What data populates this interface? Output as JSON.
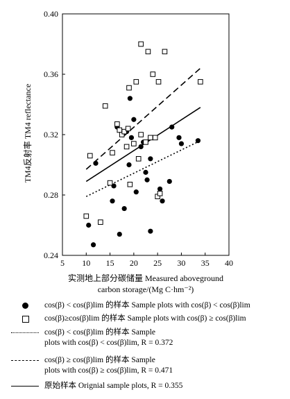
{
  "chart_data": {
    "type": "scatter",
    "xlabel_line1": "实测地上部分碳储量 Measured aboveground",
    "xlabel_line2": "carbon storage/(Mg C·hm⁻²)",
    "ylabel": "TM4反射率 TM4 reflectance",
    "xlim": [
      5,
      40
    ],
    "ylim": [
      0.24,
      0.4
    ],
    "x_ticks": [
      "5",
      "10",
      "15",
      "20",
      "25",
      "30",
      "35",
      "40"
    ],
    "y_ticks": [
      "0.24",
      "0.28",
      "0.32",
      "0.36",
      "0.40"
    ],
    "grid": false,
    "series": [
      {
        "marker": "filled-circle",
        "points": [
          [
            10.5,
            0.26
          ],
          [
            11.5,
            0.247
          ],
          [
            12.0,
            0.301
          ],
          [
            15.5,
            0.276
          ],
          [
            15.8,
            0.286
          ],
          [
            16.5,
            0.325
          ],
          [
            17.0,
            0.254
          ],
          [
            18.0,
            0.271
          ],
          [
            18.0,
            0.321
          ],
          [
            18.5,
            0.322
          ],
          [
            19.0,
            0.3
          ],
          [
            19.2,
            0.344
          ],
          [
            19.5,
            0.318
          ],
          [
            20.0,
            0.33
          ],
          [
            20.5,
            0.282
          ],
          [
            21.5,
            0.312
          ],
          [
            22.0,
            0.315
          ],
          [
            22.5,
            0.295
          ],
          [
            22.8,
            0.29
          ],
          [
            23.5,
            0.256
          ],
          [
            23.5,
            0.304
          ],
          [
            25.5,
            0.284
          ],
          [
            26.0,
            0.276
          ],
          [
            27.5,
            0.289
          ],
          [
            28.0,
            0.325
          ],
          [
            29.5,
            0.318
          ],
          [
            30.0,
            0.314
          ],
          [
            33.5,
            0.316
          ]
        ]
      },
      {
        "marker": "open-square",
        "points": [
          [
            10.0,
            0.266
          ],
          [
            10.8,
            0.306
          ],
          [
            13.0,
            0.262
          ],
          [
            14.0,
            0.339
          ],
          [
            15.0,
            0.288
          ],
          [
            15.5,
            0.308
          ],
          [
            16.5,
            0.327
          ],
          [
            17.0,
            0.323
          ],
          [
            17.5,
            0.32
          ],
          [
            18.0,
            0.322
          ],
          [
            18.5,
            0.312
          ],
          [
            18.8,
            0.324
          ],
          [
            19.0,
            0.351
          ],
          [
            19.2,
            0.287
          ],
          [
            20.0,
            0.314
          ],
          [
            20.5,
            0.355
          ],
          [
            21.0,
            0.304
          ],
          [
            21.5,
            0.38
          ],
          [
            21.5,
            0.32
          ],
          [
            22.5,
            0.315
          ],
          [
            23.0,
            0.375
          ],
          [
            23.5,
            0.318
          ],
          [
            24.0,
            0.36
          ],
          [
            24.5,
            0.318
          ],
          [
            25.0,
            0.279
          ],
          [
            25.2,
            0.355
          ],
          [
            25.5,
            0.281
          ],
          [
            26.5,
            0.375
          ],
          [
            34.0,
            0.355
          ]
        ]
      }
    ],
    "lines": [
      {
        "style": "dotted",
        "x": [
          10,
          34
        ],
        "y": [
          0.279,
          0.316
        ]
      },
      {
        "style": "dashed",
        "x": [
          10,
          34
        ],
        "y": [
          0.297,
          0.364
        ]
      },
      {
        "style": "solid",
        "x": [
          10,
          34
        ],
        "y": [
          0.289,
          0.338
        ]
      }
    ],
    "legend": [
      {
        "marker": "filled-circle",
        "text": "cos(β) < cos(β)lim 的样本 Sample plots with cos(β) < cos(β)lim"
      },
      {
        "marker": "open-square",
        "text": "cos(β)≥cos(β)lim 的样本 Sample plots with cos(β) ≥ cos(β)lim"
      },
      {
        "marker": "dotted",
        "text": "cos(β) < cos(β)lim 的样本 Sample\nplots with cos(β) < cos(β)lim, R = 0.372"
      },
      {
        "marker": "dashed",
        "text": "cos(β) ≥ cos(β)lim 的样本 Sample\nplots with cos(β) ≥ cos(β)lim, R = 0.471"
      },
      {
        "marker": "solid",
        "text": "原始样本 Orignial sample plots, R = 0.355"
      }
    ]
  }
}
